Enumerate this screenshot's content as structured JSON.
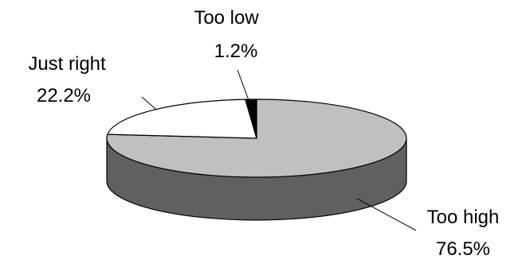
{
  "chart_data": {
    "type": "pie",
    "style": "3d",
    "title": "",
    "slices": [
      {
        "label": "Too high",
        "value": 76.5,
        "value_label": "76.5%",
        "color": "#c0c0c0",
        "side_color": "#606060"
      },
      {
        "label": "Just right",
        "value": 22.2,
        "value_label": "22.2%",
        "color": "#ffffff",
        "side_color": "#ffffff"
      },
      {
        "label": "Too low",
        "value": 1.2,
        "value_label": "1.2%",
        "color": "#000000",
        "side_color": "#000000"
      }
    ],
    "legend": "none"
  }
}
